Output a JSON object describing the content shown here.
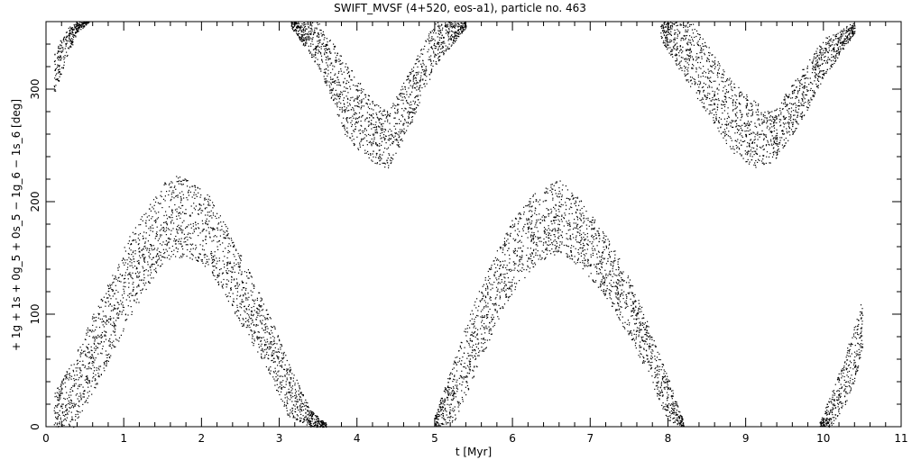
{
  "chart_data": {
    "type": "scatter",
    "title": "SWIFT_MVSF (4+520, eos-a1), particle no. 463",
    "xlabel": "t [Myr]",
    "ylabel": "+ 1g + 1s + 0g_5 + 0s_5 − 1g_6 − 1s_6 [deg]",
    "xlim": [
      0,
      11
    ],
    "ylim": [
      0,
      360
    ],
    "x_ticks": [
      0,
      1,
      2,
      3,
      4,
      5,
      6,
      7,
      8,
      9,
      10,
      11
    ],
    "y_ticks": [
      0,
      100,
      200,
      300
    ],
    "x_tick_labels": [
      "0",
      "1",
      "2",
      "3",
      "4",
      "5",
      "6",
      "7",
      "8",
      "9",
      "10",
      "11"
    ],
    "y_tick_labels": [
      "0",
      "100",
      "200",
      "300"
    ],
    "grid": false,
    "marker": "dot",
    "color": "#000000",
    "band_envelopes": [
      {
        "x": [
          0.1,
          0.25,
          0.4,
          0.55
        ],
        "lower": [
          295,
          325,
          350,
          360
        ],
        "upper": [
          330,
          355,
          360,
          360
        ]
      },
      {
        "x": [
          3.15,
          3.5,
          3.9,
          4.2,
          4.4,
          4.7,
          5.0,
          5.4
        ],
        "lower": [
          355,
          320,
          250,
          235,
          230,
          270,
          320,
          355
        ],
        "upper": [
          360,
          360,
          320,
          290,
          280,
          320,
          360,
          360
        ]
      },
      {
        "x": [
          7.9,
          8.3,
          8.8,
          9.1,
          9.35,
          9.7,
          10.0,
          10.4
        ],
        "lower": [
          345,
          300,
          245,
          230,
          235,
          270,
          310,
          350
        ],
        "upper": [
          360,
          360,
          310,
          290,
          280,
          315,
          345,
          360
        ]
      },
      {
        "x": [
          0.1,
          0.35,
          0.6,
          0.85,
          1.1,
          1.35,
          1.6,
          1.85,
          2.1,
          2.35,
          2.6,
          2.85,
          3.1,
          3.4,
          3.6
        ],
        "lower": [
          0,
          0,
          30,
          65,
          100,
          130,
          150,
          150,
          140,
          110,
          80,
          50,
          10,
          0,
          0
        ],
        "upper": [
          30,
          60,
          100,
          135,
          175,
          200,
          225,
          220,
          205,
          175,
          140,
          105,
          60,
          15,
          3
        ]
      },
      {
        "x": [
          5.0,
          5.25,
          5.5,
          5.75,
          6.0,
          6.3,
          6.6,
          6.9,
          7.2,
          7.5,
          7.75,
          8.0,
          8.2
        ],
        "lower": [
          0,
          5,
          45,
          85,
          120,
          145,
          155,
          140,
          115,
          80,
          45,
          5,
          0
        ],
        "upper": [
          10,
          60,
          110,
          150,
          185,
          210,
          220,
          200,
          170,
          135,
          90,
          45,
          5
        ]
      },
      {
        "x": [
          9.95,
          10.1,
          10.25,
          10.4,
          10.5
        ],
        "lower": [
          0,
          0,
          15,
          40,
          70
        ],
        "upper": [
          5,
          30,
          60,
          90,
          115
        ]
      }
    ]
  }
}
